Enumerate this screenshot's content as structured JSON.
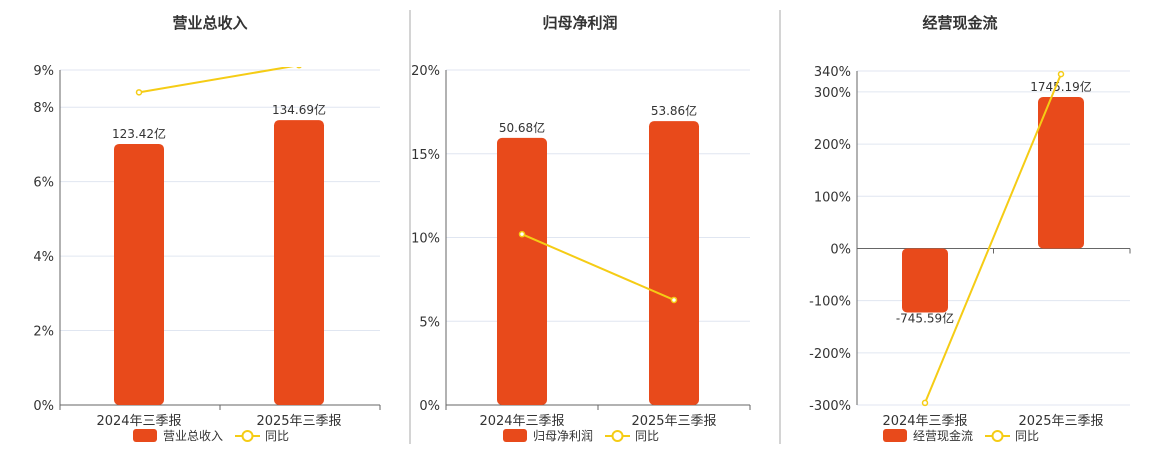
{
  "colors": {
    "bar": "#E84A1B",
    "line": "#F5CC15",
    "grid": "#E0E6F1",
    "axis": "#666666",
    "divider": "#AAAAAA"
  },
  "chart_data": [
    {
      "type": "bar+line",
      "title": "营业总收入",
      "categories": [
        "2024年三季报",
        "2025年三季报"
      ],
      "bar_series": {
        "name": "营业总收入",
        "values": [
          123.42,
          134.69
        ],
        "labels": [
          "123.42亿",
          "134.69亿"
        ]
      },
      "line_series": {
        "name": "同比",
        "values": [
          8.4,
          9.13
        ]
      },
      "yticks": [
        "0%",
        "2%",
        "4%",
        "6%",
        "8%",
        "9%"
      ],
      "ytick_values": [
        0,
        2,
        4,
        6,
        8,
        9
      ],
      "ylim": [
        0,
        9
      ],
      "grid": true,
      "legend": "bottom"
    },
    {
      "type": "bar+line",
      "title": "归母净利润",
      "categories": [
        "2024年三季报",
        "2025年三季报"
      ],
      "bar_series": {
        "name": "归母净利润",
        "values": [
          50.68,
          53.86
        ],
        "labels": [
          "50.68亿",
          "53.86亿"
        ]
      },
      "line_series": {
        "name": "同比",
        "values": [
          10.2,
          6.27
        ]
      },
      "yticks": [
        "0%",
        "5%",
        "10%",
        "15%",
        "20%"
      ],
      "ytick_values": [
        0,
        5,
        10,
        15,
        20
      ],
      "ylim": [
        0,
        20
      ],
      "grid": true,
      "legend": "bottom"
    },
    {
      "type": "bar+line",
      "title": "经营现金流",
      "categories": [
        "2024年三季报",
        "2025年三季报"
      ],
      "bar_series": {
        "name": "经营现金流",
        "values": [
          -745.59,
          1745.19
        ],
        "labels": [
          "-745.59亿",
          "1745.19亿"
        ]
      },
      "line_series": {
        "name": "同比",
        "values": [
          -296,
          334
        ]
      },
      "yticks": [
        "-300%",
        "-200%",
        "-100%",
        "0%",
        "100%",
        "200%",
        "300%",
        "340%"
      ],
      "ytick_values": [
        -300,
        -200,
        -100,
        0,
        100,
        200,
        300,
        340
      ],
      "ylim": [
        -300,
        340
      ],
      "grid": true,
      "legend": "bottom"
    }
  ]
}
